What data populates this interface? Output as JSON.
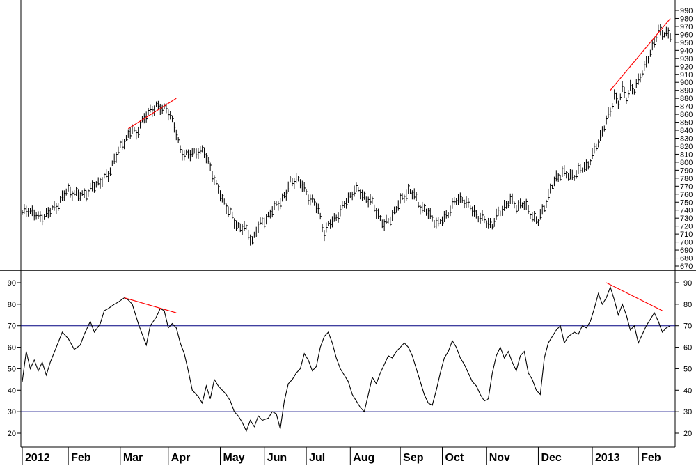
{
  "chart_data": [
    {
      "type": "bar",
      "subtype": "ohlc",
      "title": "",
      "ylim": [
        670,
        990
      ],
      "yticks": [
        670,
        680,
        690,
        700,
        710,
        720,
        730,
        740,
        750,
        760,
        770,
        780,
        790,
        800,
        810,
        820,
        830,
        840,
        850,
        860,
        870,
        880,
        890,
        900,
        910,
        920,
        930,
        940,
        950,
        960,
        970,
        980,
        990
      ],
      "price_path": [
        [
          0,
          735
        ],
        [
          3,
          742
        ],
        [
          8,
          730
        ],
        [
          13,
          736
        ],
        [
          18,
          748
        ],
        [
          23,
          766
        ],
        [
          28,
          758
        ],
        [
          33,
          763
        ],
        [
          38,
          775
        ],
        [
          43,
          783
        ],
        [
          46,
          805
        ],
        [
          50,
          822
        ],
        [
          53,
          835
        ],
        [
          55,
          842
        ],
        [
          57,
          832
        ],
        [
          59,
          850
        ],
        [
          62,
          858
        ],
        [
          65,
          866
        ],
        [
          67,
          872
        ],
        [
          70,
          865
        ],
        [
          72,
          868
        ],
        [
          74,
          860
        ],
        [
          77,
          835
        ],
        [
          79,
          815
        ],
        [
          83,
          808
        ],
        [
          88,
          815
        ],
        [
          91,
          812
        ],
        [
          94,
          795
        ],
        [
          97,
          770
        ],
        [
          100,
          755
        ],
        [
          103,
          740
        ],
        [
          106,
          725
        ],
        [
          108,
          720
        ],
        [
          111,
          718
        ],
        [
          113,
          710
        ],
        [
          115,
          702
        ],
        [
          117,
          715
        ],
        [
          120,
          725
        ],
        [
          123,
          733
        ],
        [
          126,
          742
        ],
        [
          129,
          752
        ],
        [
          132,
          760
        ],
        [
          134,
          775
        ],
        [
          137,
          780
        ],
        [
          140,
          770
        ],
        [
          143,
          758
        ],
        [
          146,
          748
        ],
        [
          148,
          740
        ],
        [
          151,
          712
        ],
        [
          153,
          720
        ],
        [
          155,
          726
        ],
        [
          158,
          735
        ],
        [
          160,
          742
        ],
        [
          163,
          755
        ],
        [
          166,
          765
        ],
        [
          169,
          762
        ],
        [
          172,
          755
        ],
        [
          175,
          748
        ],
        [
          178,
          735
        ],
        [
          181,
          720
        ],
        [
          184,
          730
        ],
        [
          187,
          742
        ],
        [
          190,
          755
        ],
        [
          193,
          765
        ],
        [
          196,
          758
        ],
        [
          199,
          745
        ],
        [
          202,
          738
        ],
        [
          205,
          730
        ],
        [
          208,
          722
        ],
        [
          211,
          730
        ],
        [
          214,
          742
        ],
        [
          217,
          752
        ],
        [
          220,
          755
        ],
        [
          223,
          745
        ],
        [
          226,
          738
        ],
        [
          229,
          730
        ],
        [
          232,
          725
        ],
        [
          235,
          722
        ],
        [
          238,
          735
        ],
        [
          241,
          745
        ],
        [
          244,
          752
        ],
        [
          247,
          745
        ],
        [
          250,
          748
        ],
        [
          253,
          740
        ],
        [
          256,
          730
        ],
        [
          258,
          725
        ],
        [
          261,
          745
        ],
        [
          264,
          765
        ],
        [
          267,
          780
        ],
        [
          270,
          788
        ],
        [
          273,
          782
        ],
        [
          276,
          785
        ],
        [
          279,
          790
        ],
        [
          282,
          795
        ],
        [
          285,
          808
        ],
        [
          288,
          825
        ],
        [
          290,
          840
        ],
        [
          292,
          852
        ],
        [
          294,
          862
        ],
        [
          296,
          885
        ],
        [
          298,
          875
        ],
        [
          300,
          890
        ],
        [
          302,
          880
        ],
        [
          304,
          895
        ],
        [
          306,
          890
        ],
        [
          308,
          900
        ],
        [
          310,
          915
        ],
        [
          312,
          925
        ],
        [
          314,
          935
        ],
        [
          316,
          950
        ],
        [
          318,
          968
        ],
        [
          320,
          960
        ]
      ],
      "trendlines": [
        {
          "start": [
            53,
            842
          ],
          "end": [
            77,
            880
          ],
          "color": "#ff0000"
        },
        {
          "start": [
            294,
            890
          ],
          "end": [
            324,
            980
          ],
          "color": "#ff0000"
        }
      ]
    },
    {
      "type": "line",
      "ylim": [
        15,
        95
      ],
      "yticks": [
        20,
        30,
        40,
        50,
        60,
        70,
        80,
        90
      ],
      "reference_lines": [
        70,
        30
      ],
      "reference_color": "#000080",
      "rsi_path": [
        [
          0,
          44
        ],
        [
          2,
          58
        ],
        [
          4,
          50
        ],
        [
          6,
          54
        ],
        [
          8,
          49
        ],
        [
          10,
          53
        ],
        [
          12,
          47
        ],
        [
          14,
          53
        ],
        [
          17,
          60
        ],
        [
          20,
          67
        ],
        [
          23,
          64
        ],
        [
          26,
          59
        ],
        [
          29,
          61
        ],
        [
          31,
          66
        ],
        [
          34,
          72
        ],
        [
          36,
          67
        ],
        [
          39,
          71
        ],
        [
          41,
          77
        ],
        [
          43,
          78
        ],
        [
          46,
          80
        ],
        [
          48,
          81
        ],
        [
          51,
          83
        ],
        [
          53,
          82
        ],
        [
          55,
          80
        ],
        [
          58,
          71
        ],
        [
          60,
          66
        ],
        [
          62,
          61
        ],
        [
          64,
          70
        ],
        [
          67,
          74
        ],
        [
          69,
          78
        ],
        [
          71,
          77
        ],
        [
          73,
          69
        ],
        [
          75,
          71
        ],
        [
          77,
          69
        ],
        [
          79,
          62
        ],
        [
          81,
          57
        ],
        [
          83,
          49
        ],
        [
          85,
          40
        ],
        [
          88,
          37
        ],
        [
          90,
          34
        ],
        [
          92,
          42
        ],
        [
          94,
          36
        ],
        [
          96,
          45
        ],
        [
          98,
          42
        ],
        [
          100,
          40
        ],
        [
          102,
          38
        ],
        [
          104,
          35
        ],
        [
          106,
          30
        ],
        [
          108,
          28
        ],
        [
          110,
          25
        ],
        [
          112,
          21
        ],
        [
          114,
          26
        ],
        [
          116,
          23
        ],
        [
          118,
          28
        ],
        [
          120,
          26
        ],
        [
          123,
          27
        ],
        [
          125,
          30
        ],
        [
          127,
          29
        ],
        [
          129,
          22
        ],
        [
          131,
          35
        ],
        [
          133,
          43
        ],
        [
          135,
          45
        ],
        [
          137,
          48
        ],
        [
          139,
          50
        ],
        [
          141,
          57
        ],
        [
          143,
          54
        ],
        [
          145,
          49
        ],
        [
          147,
          51
        ],
        [
          149,
          60
        ],
        [
          151,
          65
        ],
        [
          153,
          67
        ],
        [
          155,
          62
        ],
        [
          157,
          55
        ],
        [
          159,
          50
        ],
        [
          161,
          47
        ],
        [
          163,
          44
        ],
        [
          165,
          38
        ],
        [
          167,
          35
        ],
        [
          169,
          32
        ],
        [
          171,
          30
        ],
        [
          173,
          38
        ],
        [
          175,
          46
        ],
        [
          177,
          43
        ],
        [
          179,
          48
        ],
        [
          181,
          52
        ],
        [
          183,
          56
        ],
        [
          185,
          55
        ],
        [
          187,
          58
        ],
        [
          189,
          60
        ],
        [
          191,
          62
        ],
        [
          193,
          60
        ],
        [
          195,
          56
        ],
        [
          197,
          50
        ],
        [
          199,
          44
        ],
        [
          201,
          38
        ],
        [
          203,
          34
        ],
        [
          205,
          33
        ],
        [
          207,
          40
        ],
        [
          209,
          48
        ],
        [
          211,
          55
        ],
        [
          213,
          58
        ],
        [
          215,
          63
        ],
        [
          217,
          60
        ],
        [
          219,
          55
        ],
        [
          221,
          52
        ],
        [
          223,
          48
        ],
        [
          225,
          44
        ],
        [
          227,
          42
        ],
        [
          229,
          38
        ],
        [
          231,
          35
        ],
        [
          233,
          36
        ],
        [
          235,
          48
        ],
        [
          237,
          56
        ],
        [
          239,
          60
        ],
        [
          241,
          55
        ],
        [
          243,
          58
        ],
        [
          245,
          53
        ],
        [
          247,
          49
        ],
        [
          249,
          56
        ],
        [
          251,
          58
        ],
        [
          253,
          48
        ],
        [
          255,
          45
        ],
        [
          257,
          40
        ],
        [
          259,
          38
        ],
        [
          261,
          55
        ],
        [
          263,
          62
        ],
        [
          265,
          65
        ],
        [
          267,
          68
        ],
        [
          269,
          70
        ],
        [
          271,
          62
        ],
        [
          273,
          65
        ],
        [
          276,
          67
        ],
        [
          278,
          66
        ],
        [
          280,
          70
        ],
        [
          282,
          69
        ],
        [
          284,
          72
        ],
        [
          286,
          78
        ],
        [
          288,
          85
        ],
        [
          290,
          80
        ],
        [
          292,
          83
        ],
        [
          294,
          88
        ],
        [
          296,
          82
        ],
        [
          298,
          75
        ],
        [
          300,
          80
        ],
        [
          302,
          75
        ],
        [
          304,
          68
        ],
        [
          306,
          70
        ],
        [
          308,
          62
        ],
        [
          310,
          66
        ],
        [
          312,
          70
        ],
        [
          314,
          73
        ],
        [
          316,
          76
        ],
        [
          318,
          72
        ],
        [
          320,
          67
        ],
        [
          322,
          69
        ],
        [
          324,
          70
        ]
      ],
      "trendlines": [
        {
          "start": [
            51,
            83
          ],
          "end": [
            77,
            76
          ],
          "color": "#ff0000"
        },
        {
          "start": [
            292,
            90
          ],
          "end": [
            320,
            77
          ],
          "color": "#ff0000"
        }
      ]
    }
  ],
  "x_axis": {
    "month_labels": [
      {
        "label": "2012",
        "day": 0
      },
      {
        "label": "Feb",
        "day": 23
      },
      {
        "label": "Mar",
        "day": 49
      },
      {
        "label": "Apr",
        "day": 73
      },
      {
        "label": "May",
        "day": 99
      },
      {
        "label": "Jun",
        "day": 121
      },
      {
        "label": "Jul",
        "day": 142
      },
      {
        "label": "Aug",
        "day": 164
      },
      {
        "label": "Sep",
        "day": 189
      },
      {
        "label": "Oct",
        "day": 210
      },
      {
        "label": "Nov",
        "day": 232
      },
      {
        "label": "Dec",
        "day": 258
      },
      {
        "label": "2013",
        "day": 285
      },
      {
        "label": "Feb",
        "day": 308
      }
    ]
  }
}
